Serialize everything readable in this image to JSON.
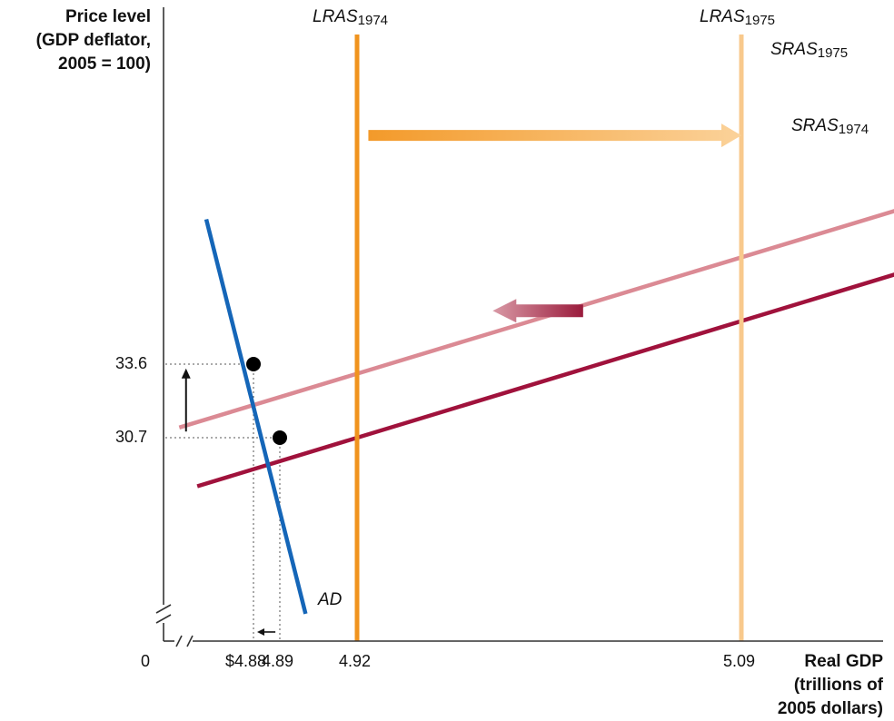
{
  "chart_data": {
    "type": "line",
    "title": "",
    "ylabel": [
      "Price level",
      "(GDP deflator,",
      "2005 = 100)"
    ],
    "xlabel": [
      "Real GDP",
      "(trillions of",
      "2005 dollars)"
    ],
    "origin_label": "0",
    "x_ticks": [
      {
        "value": 4.88,
        "label": "$4.88"
      },
      {
        "value": 4.89,
        "label": "4.89"
      },
      {
        "value": 4.92,
        "label": "4.92"
      },
      {
        "value": 5.09,
        "label": "5.09"
      }
    ],
    "y_ticks": [
      {
        "value": 30.7,
        "label": "30.7"
      },
      {
        "value": 33.6,
        "label": "33.6"
      }
    ],
    "series": [
      {
        "name": "SRAS",
        "sub": "1974",
        "kind": "supply",
        "color": "#a0123c",
        "points": [
          [
            4.855,
            29.1
          ],
          [
            5.19,
            38.0
          ]
        ]
      },
      {
        "name": "SRAS",
        "sub": "1975",
        "kind": "supply",
        "color": "#db8a94",
        "points": [
          [
            4.847,
            31.1
          ],
          [
            5.19,
            40.5
          ]
        ]
      },
      {
        "name": "AD",
        "sub": "",
        "kind": "demand",
        "color": "#1566b8",
        "points": [
          [
            4.859,
            39.3
          ],
          [
            4.9,
            24.9
          ]
        ]
      },
      {
        "name": "LRAS",
        "sub": "1974",
        "kind": "vertical",
        "color": "#f0931e",
        "x": 4.92
      },
      {
        "name": "LRAS",
        "sub": "1975",
        "kind": "vertical",
        "color": "#f8c98c",
        "x": 5.09
      }
    ],
    "equilibria": [
      {
        "x": 4.89,
        "y": 30.7
      },
      {
        "x": 4.88,
        "y": 33.6
      }
    ],
    "shift_arrows": [
      {
        "label": "LRAS shift",
        "from": [
          4.925,
          42.6
        ],
        "to": [
          5.09,
          42.6
        ],
        "color_from": "#f39a2a",
        "color_to": "#fbd29a"
      },
      {
        "label": "SRAS shift",
        "from": [
          5.02,
          35.7
        ],
        "to": [
          4.98,
          35.7
        ],
        "color_from": "#9a1b3c",
        "color_to": "#d99aa6"
      },
      {
        "label": "price rise",
        "from": [
          4.85,
          30.8
        ],
        "to": [
          4.85,
          33.5
        ],
        "color_from": "#111111",
        "color_to": "#111111"
      },
      {
        "label": "output fall",
        "from": [
          4.889,
          24.3
        ],
        "to": [
          4.88,
          24.3
        ],
        "color_from": "#111111",
        "color_to": "#111111"
      }
    ],
    "xlim": [
      4.84,
      5.2
    ],
    "ylim": [
      24.0,
      44.0
    ],
    "axis_break": true,
    "grid": false
  }
}
